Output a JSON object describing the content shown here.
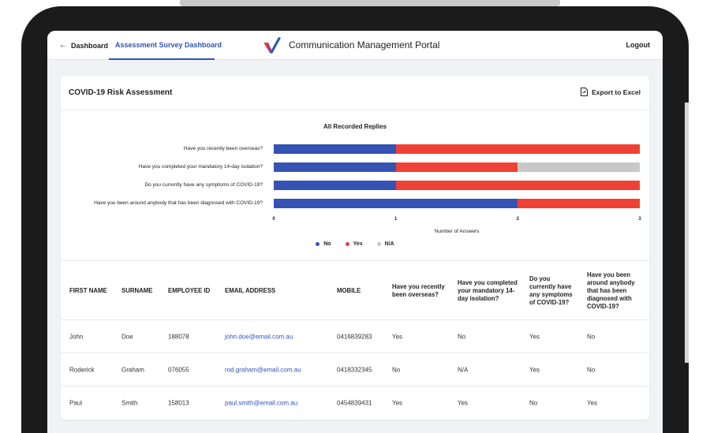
{
  "nav": {
    "back_label": "Dashboard",
    "active_tab": "Assessment Survey Dashboard",
    "app_title": "Communication Management Portal",
    "logout_label": "Logout"
  },
  "card": {
    "title": "COVID-19 Risk Assessment",
    "export_label": "Export to Excel"
  },
  "chart_data": {
    "type": "bar",
    "orientation": "horizontal",
    "stacked": true,
    "title": "All Recorded Replies",
    "xlabel": "Number of Answers",
    "ylabel": "",
    "xlim": [
      0,
      3
    ],
    "x_ticks": [
      "0",
      "1",
      "2",
      "3"
    ],
    "categories": [
      "Have you recently been overseas?",
      "Have you completed your mandatory 14-day isolation?",
      "Do you currently have any symptoms of COVID-19?",
      "Have you been around anybody that has been diagnosed with COVID-19?"
    ],
    "series": [
      {
        "name": "No",
        "color": "#3552b5",
        "values": [
          1,
          1,
          1,
          2
        ]
      },
      {
        "name": "Yes",
        "color": "#ef4136",
        "values": [
          2,
          1,
          2,
          1
        ]
      },
      {
        "name": "N/A",
        "color": "#c8c8c8",
        "values": [
          0,
          1,
          0,
          0
        ]
      }
    ],
    "legend_position": "bottom",
    "grid": false
  },
  "table": {
    "headers": {
      "first_name": "FIRST NAME",
      "surname": "SURNAME",
      "employee_id": "EMPLOYEE ID",
      "email": "EMAIL ADDRESS",
      "mobile": "MOBILE",
      "q1": "Have you recently been overseas?",
      "q2": "Have you completed your mandatory 14-day isolation?",
      "q3": "Do you currently have any symptoms of COVID-19?",
      "q4": "Have you been around anybody that has been diagnosed with COVID-19?"
    },
    "rows": [
      {
        "first_name": "John",
        "surname": "Doe",
        "employee_id": "188078",
        "email": "john.doe@email.com.au",
        "mobile": "0416839283",
        "q1": "Yes",
        "q2": "No",
        "q3": "Yes",
        "q4": "No"
      },
      {
        "first_name": "Roderick",
        "surname": "Graham",
        "employee_id": "076055",
        "email": "rod.graham@email.com.au",
        "mobile": "0418332345",
        "q1": "No",
        "q2": "N/A",
        "q3": "Yes",
        "q4": "No"
      },
      {
        "first_name": "Paul",
        "surname": "Smith",
        "employee_id": "158013",
        "email": "paul.smith@email.com.au",
        "mobile": "0454839431",
        "q1": "Yes",
        "q2": "Yes",
        "q3": "No",
        "q4": "Yes"
      }
    ]
  },
  "colors": {
    "accent": "#2f55b7",
    "logo_red": "#ef4136",
    "logo_blue": "#2f55b7"
  }
}
